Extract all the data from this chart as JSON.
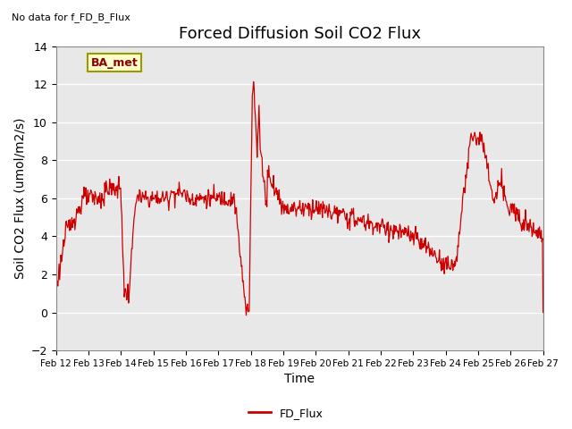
{
  "title": "Forced Diffusion Soil CO2 Flux",
  "subtitle": "No data for f_FD_B_Flux",
  "xlabel": "Time",
  "ylabel_display": "Soil CO2 Flux (umol/m2/s)",
  "ylim": [
    -2,
    14
  ],
  "yticks": [
    -2,
    0,
    2,
    4,
    6,
    8,
    10,
    12,
    14
  ],
  "line_color": "#cc0000",
  "line_label": "FD_Flux",
  "legend_label": "BA_met",
  "legend_bg": "#ffffcc",
  "legend_border": "#999900",
  "bg_color": "#e8e8e8",
  "xtick_labels": [
    "Feb 12",
    "Feb 13",
    "Feb 14",
    "Feb 15",
    "Feb 16",
    "Feb 17",
    "Feb 18",
    "Feb 19",
    "Feb 20",
    "Feb 21",
    "Feb 22",
    "Feb 23",
    "Feb 24",
    "Feb 25",
    "Feb 26",
    "Feb 27"
  ],
  "title_fontsize": 13,
  "axis_label_fontsize": 10
}
